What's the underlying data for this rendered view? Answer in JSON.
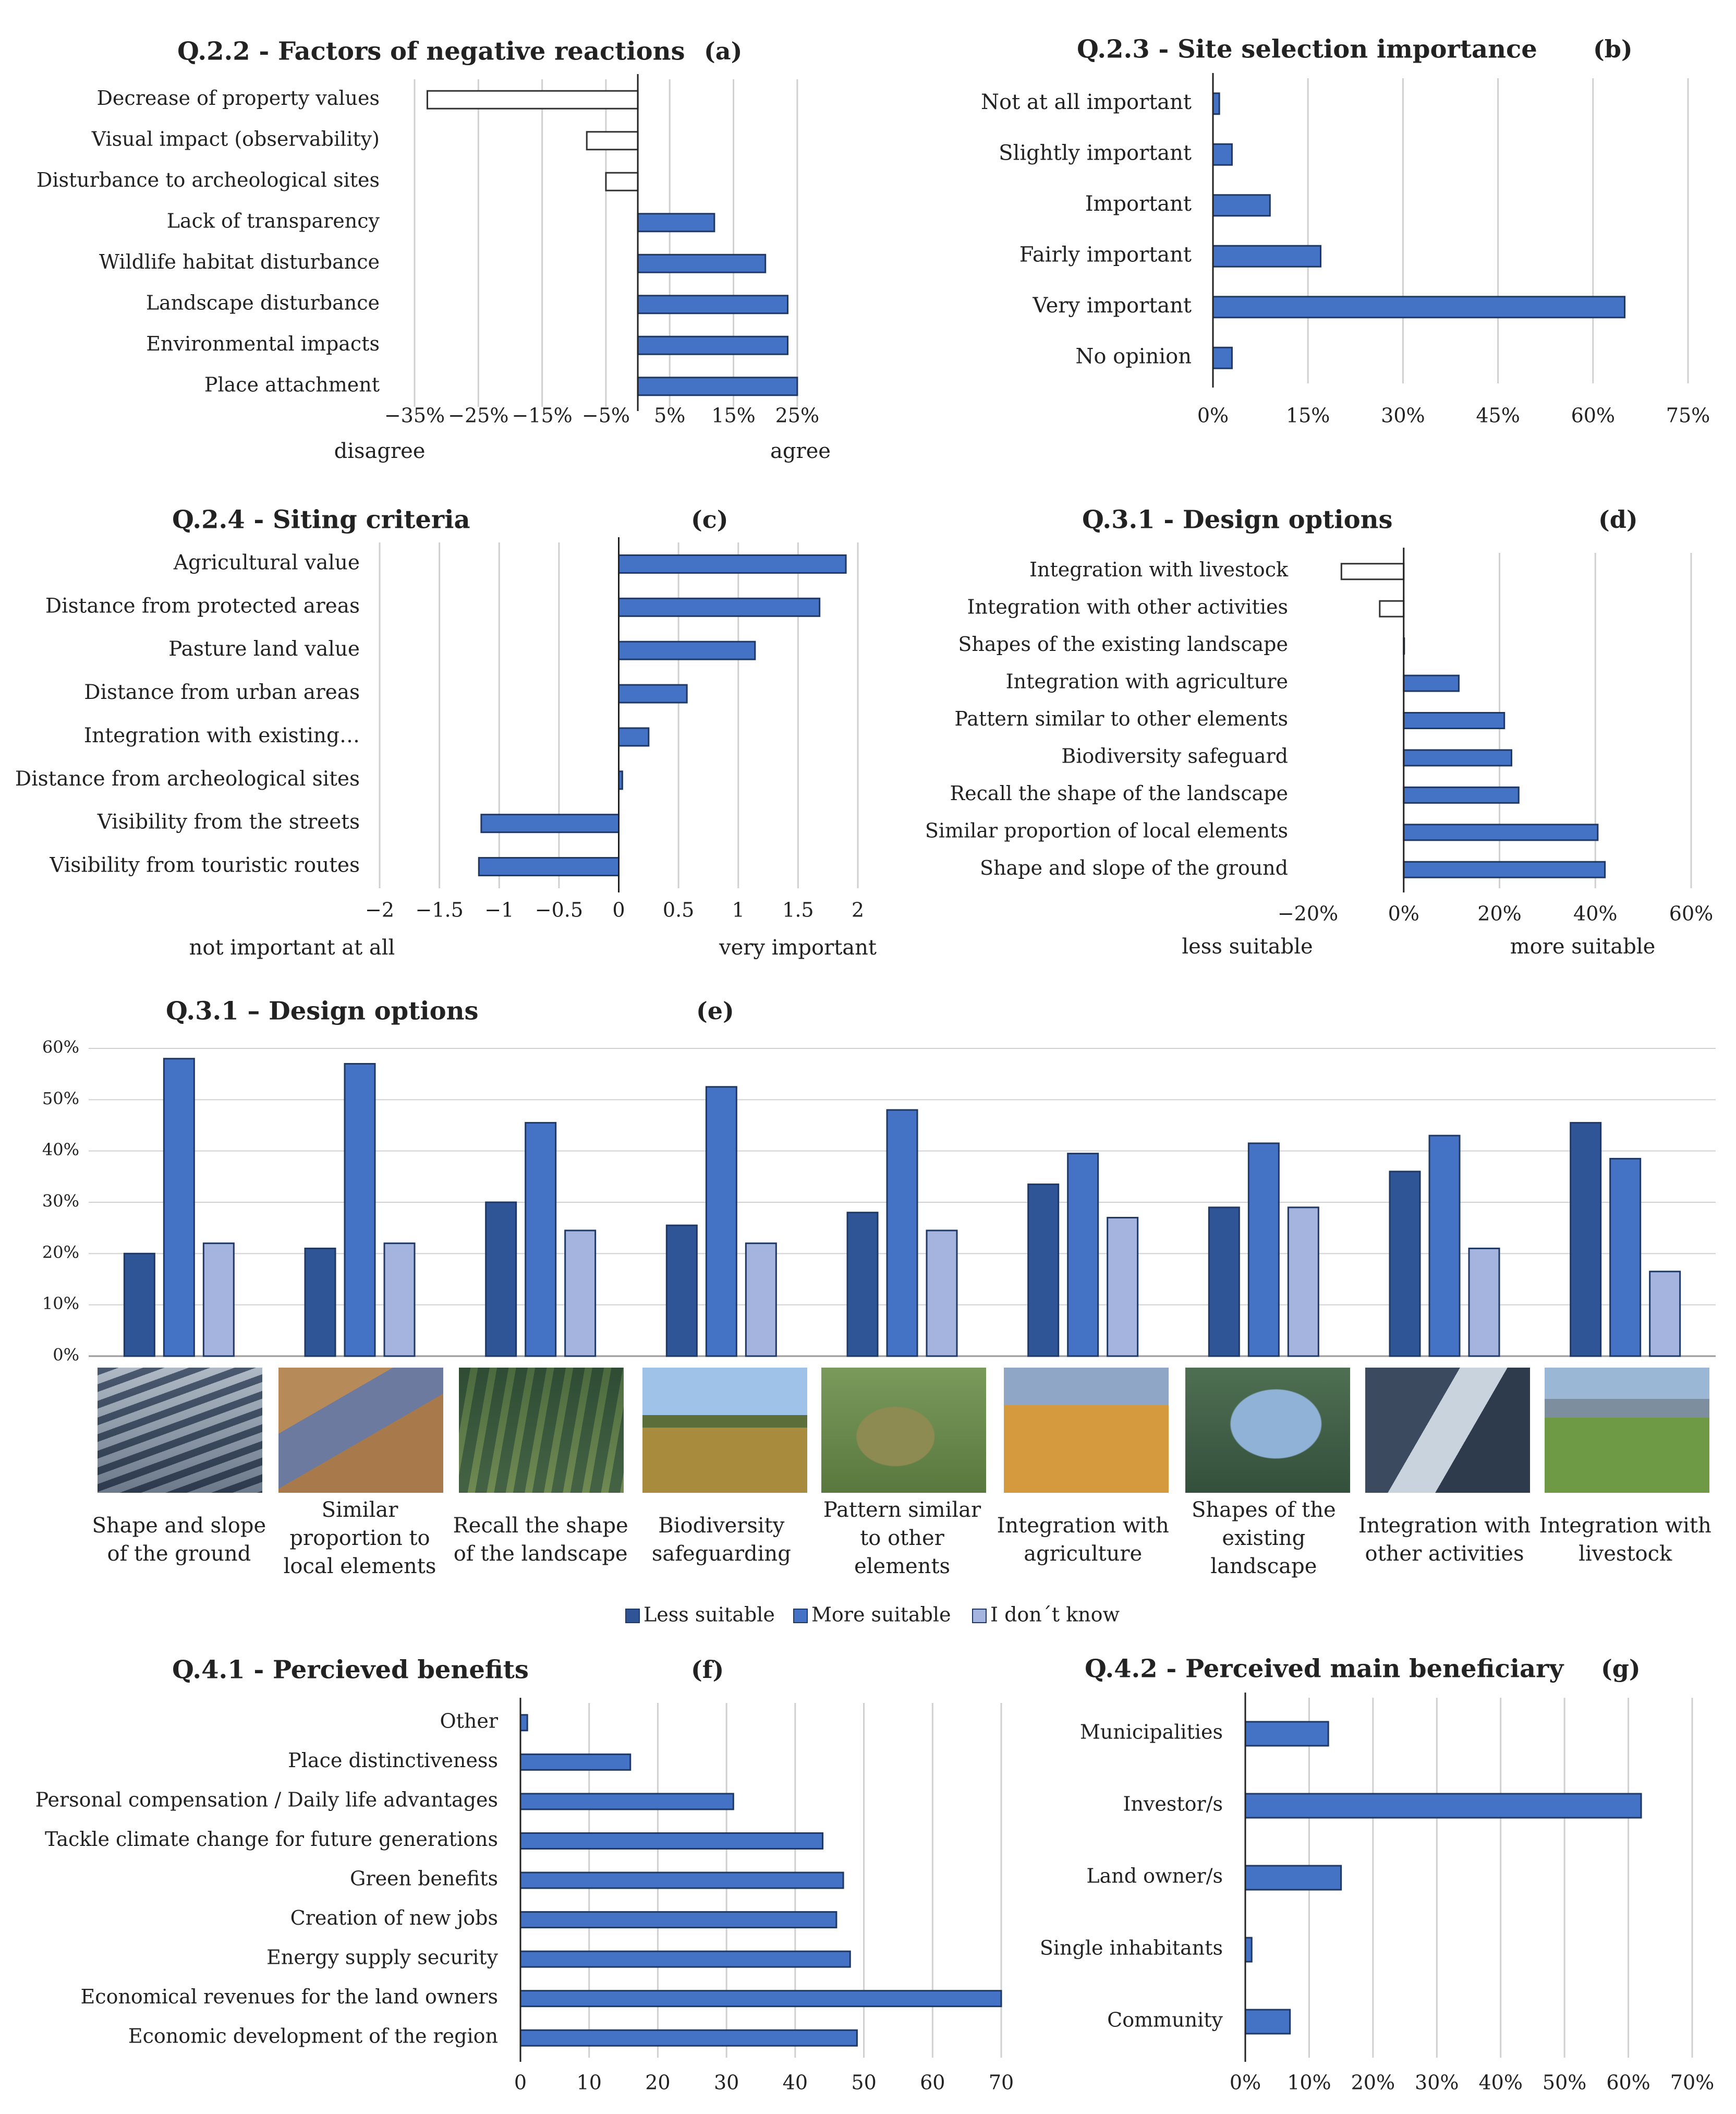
{
  "colors": {
    "bar": "#4472C4",
    "bar_stroke": "#1F3864",
    "less": "#2F5597",
    "more": "#4472C4",
    "dunno": "#A5B4DE",
    "grid": "#D0D0D0",
    "axis": "#222222"
  },
  "chart_data": [
    {
      "id": "a",
      "type": "bar",
      "orientation": "horizontal",
      "title": "Q.2.2 - Factors of negative reactions",
      "panel": "(a)",
      "categories": [
        "Decrease of property values",
        "Visual impact (observability)",
        "Disturbance to archeological sites",
        "Lack of transparency",
        "Wildlife habitat disturbance",
        "Landscape disturbance",
        "Environmental impacts",
        "Place attachment"
      ],
      "values": [
        -33,
        -8,
        -5,
        12,
        20,
        23.5,
        23.5,
        25
      ],
      "xlim": [
        -35,
        30
      ],
      "ticks": [
        -35,
        -25,
        -15,
        -5,
        5,
        15,
        25
      ],
      "tick_labels": [
        "−35%",
        "−25%",
        "−15%",
        "−5%",
        "5%",
        "15%",
        "25%"
      ],
      "gridlines": [
        -35,
        -25,
        -15,
        -5,
        5,
        15,
        25
      ],
      "negative_fill": "white",
      "left_label": "disagree",
      "right_label": "agree"
    },
    {
      "id": "b",
      "type": "bar",
      "orientation": "horizontal",
      "title": "Q.2.3 - Site selection importance",
      "panel": "(b)",
      "categories": [
        "Not at all important",
        "Slightly important",
        "Important",
        "Fairly important",
        "Very important",
        "No opinion"
      ],
      "values": [
        1,
        3,
        9,
        17,
        65,
        3
      ],
      "xlim": [
        0,
        75
      ],
      "ticks": [
        0,
        15,
        30,
        45,
        60,
        75
      ],
      "tick_labels": [
        "0%",
        "15%",
        "30%",
        "45%",
        "60%",
        "75%"
      ]
    },
    {
      "id": "c",
      "type": "bar",
      "orientation": "horizontal",
      "title": "Q.2.4 - Siting criteria",
      "panel": "(c)",
      "categories": [
        "Agricultural value",
        "Distance from protected areas",
        "Pasture land value",
        "Distance from urban areas",
        "Integration with existing…",
        "Distance from archeological sites",
        "Visibility from the streets",
        "Visibility from touristic routes"
      ],
      "values": [
        1.9,
        1.68,
        1.14,
        0.57,
        0.25,
        0.03,
        -1.15,
        -1.17
      ],
      "xlim": [
        -2,
        2
      ],
      "ticks": [
        -2,
        -1.5,
        -1,
        -0.5,
        0,
        0.5,
        1,
        1.5,
        2
      ],
      "tick_labels": [
        "−2",
        "−1.5",
        "−1",
        "−0.5",
        "0",
        "0.5",
        "1",
        "1.5",
        "2"
      ],
      "left_label": "not important at all",
      "right_label": "very important"
    },
    {
      "id": "d",
      "type": "bar",
      "orientation": "horizontal",
      "title": "Q.3.1 - Design options",
      "panel": "(d)",
      "categories": [
        "Integration with livestock",
        "Integration with other activities",
        "Shapes of the existing landscape",
        "Integration with agriculture",
        "Pattern similar to other elements",
        "Biodiversity safeguard",
        "Recall the shape of the landscape",
        "Similar proportion of local elements",
        "Shape and slope of the ground"
      ],
      "values": [
        -13,
        -5,
        0,
        11.5,
        21,
        22.5,
        24,
        40.5,
        42
      ],
      "xlim": [
        -20,
        60
      ],
      "ticks": [
        -20,
        0,
        20,
        40,
        60
      ],
      "tick_labels": [
        "−20%",
        "0%",
        "20%",
        "40%",
        "60%"
      ],
      "gridlines": [
        0,
        20,
        40,
        60
      ],
      "negative_fill": "white",
      "left_label": "less suitable",
      "right_label": "more suitable"
    },
    {
      "id": "e",
      "type": "bar",
      "orientation": "vertical",
      "title": "Q.3.1 – Design options",
      "panel": "(e)",
      "categories": [
        "Shape and slope of the ground",
        "Similar proportion to local elements",
        "Recall the shape of the landscape",
        "Biodiversity safeguarding",
        "Pattern similar to other elements",
        "Integration with agriculture",
        "Shapes of the existing landscape",
        "Integration with other activities",
        "Integration with livestock"
      ],
      "category_lines": [
        [
          "Shape and slope",
          "of the ground"
        ],
        [
          "Similar",
          "proportion to",
          "local elements"
        ],
        [
          "Recall the shape",
          "of the landscape"
        ],
        [
          "Biodiversity",
          "safeguarding"
        ],
        [
          "Pattern similar",
          "to other",
          "elements"
        ],
        [
          "Integration with",
          "agriculture"
        ],
        [
          "Shapes of the",
          "existing",
          "landscape"
        ],
        [
          "Integration with",
          "other activities"
        ],
        [
          "Integration with",
          "livestock"
        ]
      ],
      "series": [
        {
          "name": "Less suitable",
          "values": [
            20,
            21,
            30,
            25.5,
            28,
            33.5,
            29,
            36,
            45.5
          ]
        },
        {
          "name": "More suitable",
          "values": [
            58,
            57,
            45.5,
            52.5,
            48,
            39.5,
            41.5,
            43,
            38.5
          ]
        },
        {
          "name": "I don´t know",
          "values": [
            22,
            22,
            24.5,
            22,
            24.5,
            27,
            29,
            21,
            16.5
          ]
        }
      ],
      "ylim": [
        0,
        60
      ],
      "ticks": [
        0,
        10,
        20,
        30,
        40,
        50,
        60
      ],
      "tick_labels": [
        "0%",
        "10%",
        "20%",
        "30%",
        "40%",
        "50%",
        "60%"
      ]
    },
    {
      "id": "f",
      "type": "bar",
      "orientation": "horizontal",
      "title": "Q.4.1 - Percieved benefits",
      "panel": "(f)",
      "categories": [
        "Other",
        "Place distinctiveness",
        "Personal compensation / Daily life advantages",
        "Tackle climate change for future generations",
        "Green benefits",
        "Creation of new jobs",
        "Energy supply security",
        "Economical revenues for the land owners",
        "Economic development of the region"
      ],
      "values": [
        1,
        16,
        31,
        44,
        47,
        46,
        48,
        70,
        49
      ],
      "xlim": [
        0,
        70
      ],
      "ticks": [
        0,
        10,
        20,
        30,
        40,
        50,
        60,
        70
      ],
      "tick_labels": [
        "0",
        "10",
        "20",
        "30",
        "40",
        "50",
        "60",
        "70"
      ]
    },
    {
      "id": "g",
      "type": "bar",
      "orientation": "horizontal",
      "title": "Q.4.2 - Perceived main beneficiary",
      "panel": "(g)",
      "categories": [
        "Municipalities",
        "Investor/s",
        "Land owner/s",
        "Single inhabitants",
        "Community"
      ],
      "values": [
        13,
        62,
        15,
        1,
        7
      ],
      "xlim": [
        0,
        70
      ],
      "ticks": [
        0,
        10,
        20,
        30,
        40,
        50,
        60,
        70
      ],
      "tick_labels": [
        "0%",
        "10%",
        "20%",
        "30%",
        "40%",
        "50%",
        "60%",
        "70%"
      ]
    }
  ]
}
